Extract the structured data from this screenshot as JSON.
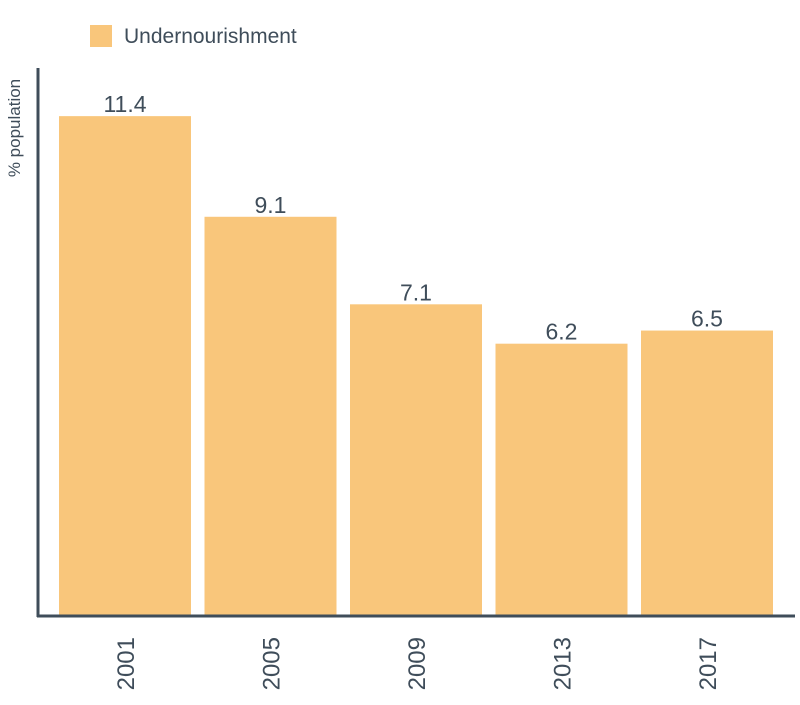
{
  "chart_data": {
    "type": "bar",
    "categories": [
      "2001",
      "2005",
      "2009",
      "2013",
      "2017"
    ],
    "series": [
      {
        "name": "Undernourishment",
        "values": [
          11.4,
          9.1,
          7.1,
          6.2,
          6.5
        ]
      }
    ],
    "title": "",
    "xlabel": "",
    "ylabel": "% population",
    "ylim": [
      0,
      12.5
    ],
    "grid": false,
    "legend_position": "top-left",
    "data_labels": true,
    "colors": {
      "bar": "#f9c67b",
      "axis": "#3f4d5a",
      "text": "#3f4d5a"
    }
  }
}
